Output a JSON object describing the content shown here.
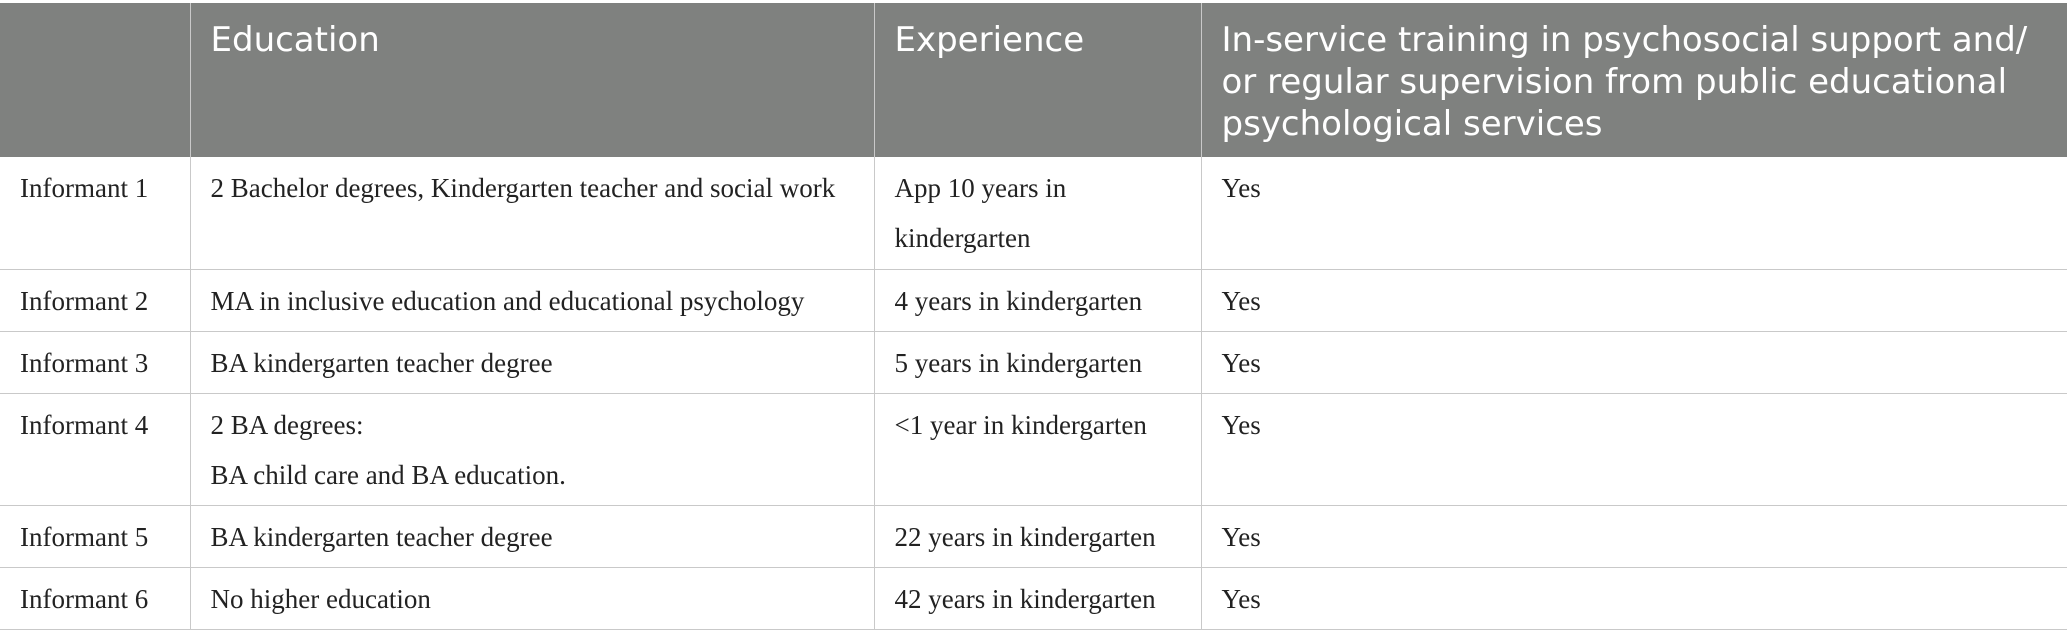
{
  "table": {
    "headers": [
      "",
      "Education",
      "Experience",
      "In-service training in psychosocial support and/ or regular supervision from public educational psychological services"
    ],
    "rows": [
      {
        "informant": "Informant 1",
        "education": [
          "2 Bachelor degrees, Kindergarten teacher and social work"
        ],
        "experience": "App 10 years in kindergarten",
        "training": "Yes"
      },
      {
        "informant": "Informant 2",
        "education": [
          "MA in inclusive education and educational psychology"
        ],
        "experience": "4 years in kindergarten",
        "training": "Yes"
      },
      {
        "informant": "Informant 3",
        "education": [
          "BA kindergarten teacher degree"
        ],
        "experience": "5 years in kindergarten",
        "training": "Yes"
      },
      {
        "informant": "Informant 4",
        "education": [
          "2 BA degrees:",
          "BA child care and BA education."
        ],
        "experience": "<1 year in kindergarten",
        "training": "Yes"
      },
      {
        "informant": "Informant 5",
        "education": [
          "BA kindergarten teacher degree"
        ],
        "experience": "22 years in kindergarten",
        "training": "Yes"
      },
      {
        "informant": "Informant 6",
        "education": [
          "No higher education"
        ],
        "experience": "42 years in kindergarten",
        "training": "Yes"
      }
    ]
  }
}
